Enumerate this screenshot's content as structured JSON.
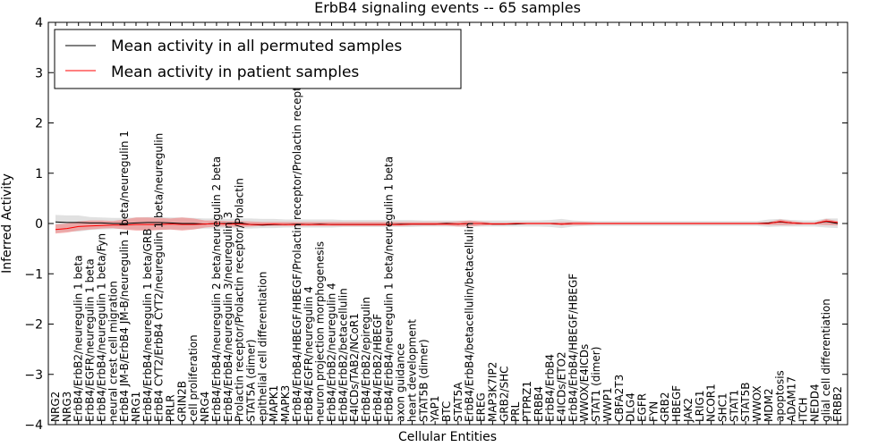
{
  "chart_data": {
    "type": "line",
    "title": "ErbB4 signaling events -- 65 samples",
    "xlabel": "Cellular Entities",
    "ylabel": "Inferred Activity",
    "ylim": [
      -4,
      4
    ],
    "yticks": [
      -4,
      -3,
      -2,
      -1,
      0,
      1,
      2,
      3,
      4
    ],
    "grid": false,
    "legend_position": "top-left",
    "categories": [
      "NRG2",
      "NRG3",
      "ErbB4/ErbB2/neuregulin 1 beta",
      "ErbB4/EGFR/neuregulin 1 beta",
      "ErbB4/ErbB4/neuregulin 1 beta/Fyn",
      "neural crest cell migration",
      "ErbB4 JM-B/ErbB4 JM-B/neuregulin 1 beta/neuregulin 1",
      "NRG1",
      "ErbB4/ErbB4/neuregulin 1 beta/GRB",
      "ErbB4 CYT2/ErbB4 CYT2/neuregulin 1 beta/neuregulin",
      "PRLR",
      "GRIN2B",
      "cell proliferation",
      "NRG4",
      "ErbB4/ErbB4/neuregulin 2 beta/neuregulin 2 beta",
      "ErbB4/ErbB4/neuregulin 3/neuregulin 3",
      "Prolactin receptor/Prolactin receptor/Prolactin",
      "STAT5A (dimer)",
      "epithelial cell differentiation",
      "MAPK1",
      "MAPK3",
      "ErbB4/ErbB4/HBEGF/HBEGF/Prolactin receptor/Prolactin receptor/P",
      "ErbB4/EGFR/neuregulin 4",
      "neuron projection morphogenesis",
      "ErbB4/ErbB2/neuregulin 4",
      "ErbB4/ErbB2/betacellulin",
      "E4ICDs/TAB2/NCoR1",
      "ErbB4/ErbB2/epiregulin",
      "ErbB4/ErbB2/HBEGF",
      "ErbB4/ErbB4/neuregulin 1 beta/neuregulin 1 beta",
      "axon guidance",
      "heart development",
      "STAT5B (dimer)",
      "YAP1",
      "BTC",
      "STAT5A",
      "ErbB4/ErbB4/betacellulin/betacellulin",
      "EREG",
      "MAP3K7IP2",
      "GRB2/SHC",
      "PRL",
      "PTPRZ1",
      "ERBB4",
      "ErbB4/ErbB4",
      "E4ICDs/ETO2",
      "ErbB4/ErbB4/HBEGF/HBEGF",
      "WWOX/E4ICDs",
      "STAT1 (dimer)",
      "WWP1",
      "CBFA2T3",
      "DLG4",
      "EGFR",
      "FYN",
      "GRB2",
      "HBEGF",
      "JAK2",
      "LRIG1",
      "NCOR1",
      "SHC1",
      "STAT1",
      "STAT5B",
      "WWOX",
      "MDM2",
      "apoptosis",
      "ADAM17",
      "ITCH",
      "NEDD4",
      "glial cell differentiation",
      "ERBB2"
    ],
    "series": [
      {
        "name": "Mean activity in all permuted samples",
        "color": "#000000",
        "values": [
          0.03,
          0.02,
          0.02,
          0.01,
          0.01,
          0.0,
          0.0,
          0.01,
          0.02,
          0.02,
          0.01,
          0.0,
          0.0,
          -0.01,
          0.0,
          0.0,
          0.01,
          -0.02,
          -0.03,
          -0.02,
          -0.02,
          -0.01,
          -0.02,
          -0.01,
          -0.02,
          -0.02,
          -0.02,
          -0.02,
          -0.02,
          -0.02,
          -0.01,
          -0.01,
          -0.01,
          -0.01,
          0.0,
          -0.01,
          0.0,
          0.0,
          -0.01,
          -0.01,
          -0.01,
          0.0,
          0.0,
          0.0,
          -0.01,
          0.0,
          0.0,
          0.0,
          0.0,
          0.0,
          0.0,
          0.0,
          0.0,
          0.0,
          0.0,
          0.0,
          0.0,
          0.0,
          0.0,
          0.0,
          0.0,
          0.0,
          0.01,
          0.03,
          0.01,
          0.0,
          0.0,
          0.04,
          0.0
        ]
      },
      {
        "name": "Mean activity in patient samples",
        "color": "#ff0000",
        "values": [
          -0.12,
          -0.1,
          -0.06,
          -0.05,
          -0.04,
          -0.03,
          -0.03,
          -0.02,
          -0.02,
          -0.02,
          -0.01,
          -0.02,
          -0.02,
          -0.01,
          0.0,
          -0.01,
          -0.01,
          -0.02,
          -0.02,
          -0.01,
          -0.02,
          -0.02,
          -0.02,
          -0.02,
          -0.02,
          -0.02,
          -0.02,
          -0.02,
          -0.02,
          -0.02,
          -0.02,
          -0.01,
          -0.01,
          -0.01,
          -0.01,
          -0.01,
          0.0,
          0.0,
          -0.01,
          -0.01,
          0.0,
          0.0,
          0.0,
          0.0,
          -0.01,
          0.0,
          0.0,
          0.0,
          0.0,
          0.0,
          0.0,
          0.0,
          0.0,
          0.0,
          0.0,
          0.0,
          0.0,
          0.0,
          0.0,
          0.0,
          0.0,
          0.0,
          0.0,
          0.04,
          0.01,
          0.0,
          0.0,
          0.05,
          0.02
        ]
      }
    ],
    "bands": [
      {
        "series": "Mean activity in all permuted samples",
        "color": "#c8c8c8",
        "lower": [
          -0.18,
          -0.16,
          -0.16,
          -0.13,
          -0.12,
          -0.11,
          -0.11,
          -0.12,
          -0.13,
          -0.13,
          -0.12,
          -0.12,
          -0.11,
          -0.1,
          -0.1,
          -0.09,
          -0.1,
          -0.1,
          -0.09,
          -0.09,
          -0.08,
          -0.08,
          -0.08,
          -0.08,
          -0.08,
          -0.07,
          -0.07,
          -0.07,
          -0.07,
          -0.07,
          -0.07,
          -0.07,
          -0.06,
          -0.06,
          -0.06,
          -0.06,
          -0.06,
          -0.06,
          -0.06,
          -0.06,
          -0.06,
          -0.06,
          -0.06,
          -0.07,
          -0.09,
          -0.06,
          -0.05,
          -0.05,
          -0.05,
          -0.05,
          -0.05,
          -0.05,
          -0.05,
          -0.05,
          -0.05,
          -0.05,
          -0.05,
          -0.05,
          -0.05,
          -0.05,
          -0.05,
          -0.05,
          -0.07,
          -0.06,
          -0.06,
          -0.06,
          -0.06,
          -0.08,
          -0.09
        ],
        "upper": [
          0.17,
          0.16,
          0.16,
          0.13,
          0.12,
          0.11,
          0.11,
          0.12,
          0.13,
          0.13,
          0.12,
          0.12,
          0.11,
          0.1,
          0.1,
          0.09,
          0.1,
          0.1,
          0.09,
          0.09,
          0.08,
          0.08,
          0.08,
          0.08,
          0.08,
          0.07,
          0.07,
          0.07,
          0.07,
          0.07,
          0.07,
          0.07,
          0.06,
          0.06,
          0.06,
          0.06,
          0.06,
          0.06,
          0.06,
          0.06,
          0.06,
          0.06,
          0.06,
          0.07,
          0.09,
          0.06,
          0.05,
          0.05,
          0.05,
          0.05,
          0.05,
          0.05,
          0.05,
          0.05,
          0.05,
          0.05,
          0.05,
          0.05,
          0.05,
          0.05,
          0.05,
          0.05,
          0.08,
          0.09,
          0.07,
          0.06,
          0.06,
          0.1,
          0.1
        ]
      },
      {
        "series": "Mean activity in patient samples",
        "color": "#f08080",
        "lower": [
          -0.2,
          -0.18,
          -0.14,
          -0.12,
          -0.1,
          -0.09,
          -0.12,
          -0.14,
          -0.14,
          -0.13,
          -0.12,
          -0.14,
          -0.12,
          -0.08,
          -0.06,
          -0.06,
          -0.07,
          -0.06,
          -0.05,
          -0.05,
          -0.05,
          -0.05,
          -0.05,
          -0.05,
          -0.05,
          -0.05,
          -0.05,
          -0.05,
          -0.05,
          -0.05,
          -0.05,
          -0.04,
          -0.04,
          -0.04,
          -0.04,
          -0.06,
          -0.06,
          -0.04,
          -0.03,
          -0.03,
          -0.02,
          -0.02,
          -0.02,
          -0.02,
          -0.04,
          -0.03,
          -0.03,
          -0.02,
          -0.02,
          -0.02,
          -0.02,
          -0.02,
          -0.02,
          -0.02,
          -0.02,
          -0.02,
          -0.02,
          -0.02,
          -0.02,
          -0.02,
          -0.02,
          -0.02,
          -0.03,
          -0.03,
          -0.03,
          -0.02,
          -0.02,
          -0.03,
          -0.04
        ],
        "upper": [
          -0.02,
          0.0,
          0.04,
          0.06,
          0.06,
          0.05,
          0.08,
          0.12,
          0.12,
          0.11,
          0.1,
          0.12,
          0.1,
          0.06,
          0.06,
          0.05,
          0.05,
          0.04,
          0.03,
          0.03,
          0.03,
          0.03,
          0.03,
          0.03,
          0.03,
          0.03,
          0.03,
          0.03,
          0.03,
          0.03,
          0.03,
          0.03,
          0.03,
          0.03,
          0.03,
          0.04,
          0.06,
          0.04,
          0.02,
          0.02,
          0.02,
          0.02,
          0.02,
          0.02,
          0.03,
          0.03,
          0.03,
          0.02,
          0.02,
          0.02,
          0.02,
          0.02,
          0.02,
          0.02,
          0.02,
          0.02,
          0.02,
          0.02,
          0.02,
          0.02,
          0.02,
          0.02,
          0.03,
          0.08,
          0.05,
          0.02,
          0.02,
          0.09,
          0.05
        ]
      }
    ]
  }
}
